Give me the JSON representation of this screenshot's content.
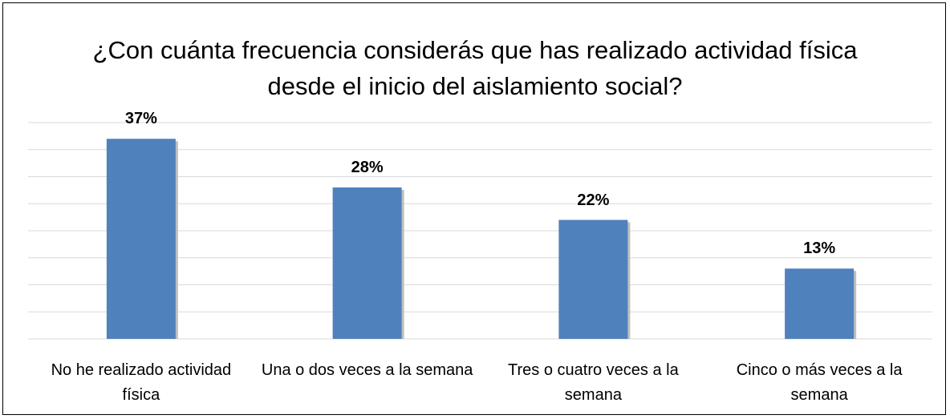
{
  "chart_data": {
    "type": "bar",
    "title": "¿Con cuánta frecuencia considerás que has realizado actividad física desde el inicio del aislamiento social?",
    "categories": [
      "No he realizado actividad física",
      "Una o dos veces a la semana",
      "Tres o cuatro veces a la semana",
      "Cinco o más veces a la semana"
    ],
    "values": [
      37,
      28,
      22,
      13
    ],
    "value_labels": [
      "37%",
      "28%",
      "22%",
      "13%"
    ],
    "color": "#4f81bd",
    "ylim": [
      0,
      40
    ],
    "yticks": [
      0,
      5,
      10,
      15,
      20,
      25,
      30,
      35,
      40
    ],
    "grid": true
  }
}
